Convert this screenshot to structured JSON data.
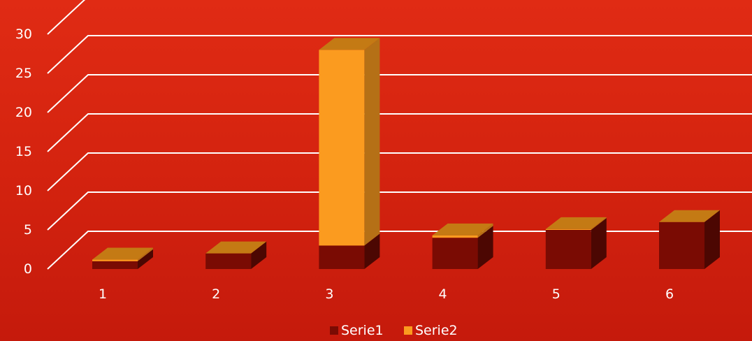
{
  "chart_data": {
    "type": "bar",
    "stacked": true,
    "three_d": true,
    "categories": [
      "1",
      "2",
      "3",
      "4",
      "5",
      "6"
    ],
    "series": [
      {
        "name": "Serie1",
        "values": [
          1,
          2,
          3,
          4,
          5,
          6
        ],
        "color": "#7a0b03"
      },
      {
        "name": "Serie2",
        "values": [
          0.2,
          0,
          25,
          0.3,
          0.1,
          0
        ],
        "color": "#fb9b1f"
      }
    ],
    "ylim": [
      0,
      30
    ],
    "yticks": [
      "0",
      "5",
      "10",
      "15",
      "20",
      "25",
      "30"
    ],
    "grid": true,
    "legend_position": "bottom",
    "gridline_color": "#ffffff",
    "background_color": "#d8260f"
  }
}
